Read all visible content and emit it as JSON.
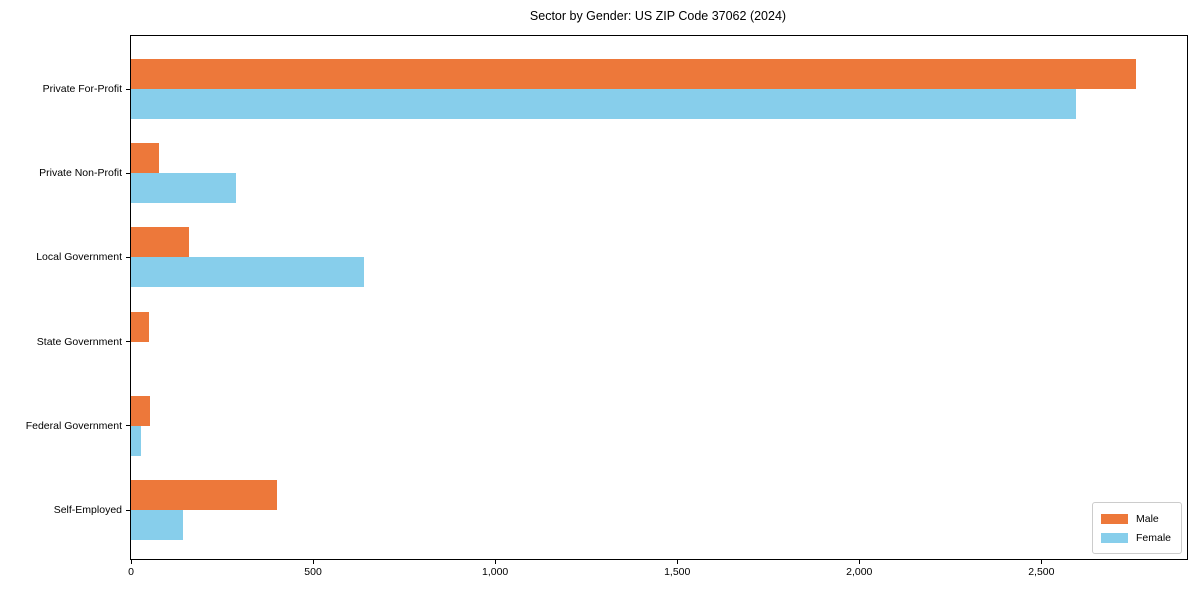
{
  "chart_data": {
    "type": "bar",
    "orientation": "horizontal",
    "title": "Sector by Gender: US ZIP Code 37062 (2024)",
    "categories": [
      "Private For-Profit",
      "Private Non-Profit",
      "Local Government",
      "State Government",
      "Federal Government",
      "Self-Employed"
    ],
    "series": [
      {
        "name": "Male",
        "color": "#ed783a",
        "values": [
          2760,
          78,
          160,
          49,
          52,
          402
        ]
      },
      {
        "name": "Female",
        "color": "#87ceeb",
        "values": [
          2595,
          288,
          640,
          0,
          28,
          143
        ]
      }
    ],
    "xlabel": "",
    "ylabel": "",
    "xlim": [
      0,
      2900
    ],
    "xticks": {
      "values": [
        0,
        500,
        1000,
        1500,
        2000,
        2500
      ],
      "labels": [
        "0",
        "500",
        "1,000",
        "1,500",
        "2,000",
        "2,500"
      ]
    },
    "grid": false,
    "legend_position": "lower right"
  }
}
